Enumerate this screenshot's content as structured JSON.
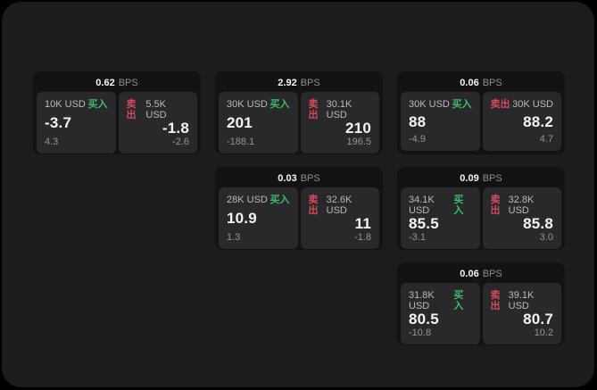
{
  "colors": {
    "panel_bg": "#1c1c1e",
    "card_bg": "#131314",
    "tile_bg": "#29292b",
    "text_bright": "#f5f5f6",
    "text_muted": "#8e8e93",
    "text_size": "#b9b9be",
    "text_delta": "#939398",
    "buy_green": "#3fbb68",
    "sell_red": "#d4495e"
  },
  "labels": {
    "bps_unit": "BPS",
    "buy": "买入",
    "sell": "卖出"
  },
  "cards": [
    {
      "bps": "0.62",
      "buy": {
        "size": "10K USD",
        "value": "-3.7",
        "delta": "4.3"
      },
      "sell": {
        "size": "5.5K USD",
        "value": "-1.8",
        "delta": "-2.6"
      }
    },
    {
      "bps": "2.92",
      "buy": {
        "size": "30K USD",
        "value": "201",
        "delta": "-188.1"
      },
      "sell": {
        "size": "30.1K USD",
        "value": "210",
        "delta": "196.5"
      }
    },
    {
      "bps": "0.06",
      "buy": {
        "size": "30K USD",
        "value": "88",
        "delta": "-4.9"
      },
      "sell": {
        "size": "30K USD",
        "value": "88.2",
        "delta": "4.7"
      }
    },
    {
      "bps": "0.03",
      "buy": {
        "size": "28K USD",
        "value": "10.9",
        "delta": "1.3"
      },
      "sell": {
        "size": "32.6K USD",
        "value": "11",
        "delta": "-1.8"
      }
    },
    {
      "bps": "0.09",
      "buy": {
        "size": "34.1K USD",
        "value": "85.5",
        "delta": "-3.1"
      },
      "sell": {
        "size": "32.8K USD",
        "value": "85.8",
        "delta": "3.0"
      }
    },
    {
      "bps": "0.06",
      "buy": {
        "size": "31.8K USD",
        "value": "80.5",
        "delta": "-10.8"
      },
      "sell": {
        "size": "39.1K USD",
        "value": "80.7",
        "delta": "10.2"
      }
    }
  ]
}
